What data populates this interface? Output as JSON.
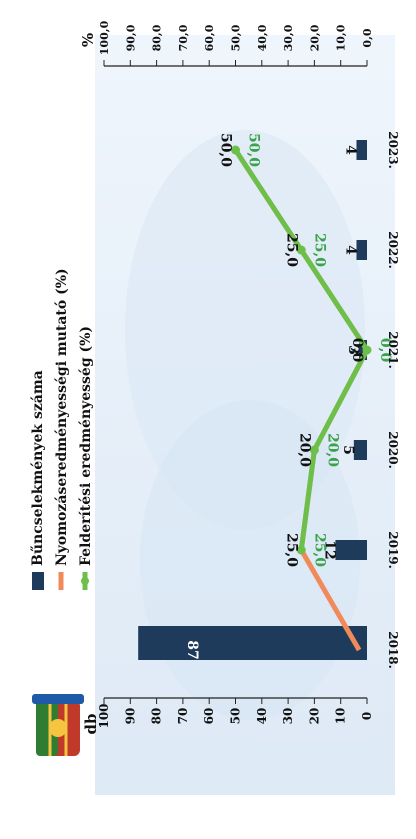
{
  "units": {
    "left": "db",
    "right": "%"
  },
  "chart_data": {
    "type": "bar",
    "orientation": "rotated-90-clockwise",
    "title": "",
    "categories": [
      "2018.",
      "2019.",
      "2020.",
      "2021.",
      "2022.",
      "2023."
    ],
    "left_axis": {
      "label": "db",
      "ticks": [
        "0",
        "10",
        "20",
        "30",
        "40",
        "50",
        "60",
        "70",
        "80",
        "90",
        "100"
      ],
      "range": [
        0,
        100
      ]
    },
    "right_axis": {
      "label": "%",
      "ticks": [
        "0,0",
        "10,0",
        "20,0",
        "30,0",
        "40,0",
        "50,0",
        "60,0",
        "70,0",
        "80,0",
        "90,0",
        "100,0"
      ],
      "range": [
        0,
        100
      ]
    },
    "legend": {
      "position": "top",
      "entries": [
        {
          "label": "Bűncselekmények száma",
          "color": "#1f3b5c"
        },
        {
          "label": "Nyomozáseredményességi mutató (%)",
          "color": "#f08a5a"
        },
        {
          "label": "Felderítési eredményesség (%)",
          "color": "#6cc04a"
        }
      ]
    },
    "series": [
      {
        "name": "Bűncselekmények száma",
        "type": "bar",
        "axis": "left",
        "values": [
          87,
          12,
          5,
          3,
          4,
          4
        ],
        "labels": [
          "87",
          "12",
          "5",
          "3",
          "4",
          "4"
        ],
        "color": "#1f3b5c"
      },
      {
        "name": "Nyomozáseredményességi mutató (%)",
        "type": "line",
        "axis": "right",
        "values": [
          3,
          25,
          20,
          0,
          25,
          50
        ],
        "labels": [
          "",
          "25,0",
          "20,0",
          "0,0",
          "25,0",
          "50,0"
        ],
        "color": "#f08a5a"
      },
      {
        "name": "Felderítési eredményesség (%)",
        "type": "line",
        "axis": "right",
        "values": [
          null,
          25,
          20,
          0,
          25,
          50
        ],
        "labels": [
          "",
          "25,0",
          "20,0",
          "0,0",
          "25,0",
          "50,0"
        ],
        "color": "#6cc04a"
      }
    ]
  }
}
